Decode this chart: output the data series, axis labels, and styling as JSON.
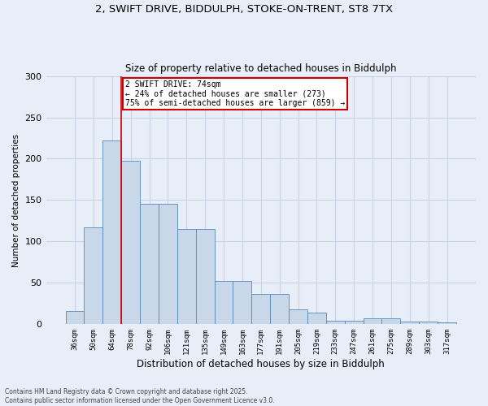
{
  "title_line1": "2, SWIFT DRIVE, BIDDULPH, STOKE-ON-TRENT, ST8 7TX",
  "title_line2": "Size of property relative to detached houses in Biddulph",
  "xlabel": "Distribution of detached houses by size in Biddulph",
  "ylabel": "Number of detached properties",
  "categories": [
    "36sqm",
    "50sqm",
    "64sqm",
    "78sqm",
    "92sqm",
    "106sqm",
    "121sqm",
    "135sqm",
    "149sqm",
    "163sqm",
    "177sqm",
    "191sqm",
    "205sqm",
    "219sqm",
    "233sqm",
    "247sqm",
    "261sqm",
    "275sqm",
    "289sqm",
    "303sqm",
    "317sqm"
  ],
  "values": [
    16,
    117,
    222,
    198,
    146,
    146,
    115,
    115,
    52,
    52,
    37,
    37,
    18,
    14,
    4,
    4,
    7,
    7,
    3,
    3,
    2
  ],
  "bar_color": "#c8d8e8",
  "bar_edge_color": "#5588bb",
  "grid_color": "#c8d4e4",
  "background_color": "#e8eef8",
  "red_line_index": 2.5,
  "annotation_text": "2 SWIFT DRIVE: 74sqm\n← 24% of detached houses are smaller (273)\n75% of semi-detached houses are larger (859) →",
  "annotation_box_color": "white",
  "annotation_box_edge": "#cc0000",
  "footnote": "Contains HM Land Registry data © Crown copyright and database right 2025.\nContains public sector information licensed under the Open Government Licence v3.0.",
  "ylim": [
    0,
    300
  ],
  "yticks": [
    0,
    50,
    100,
    150,
    200,
    250,
    300
  ]
}
